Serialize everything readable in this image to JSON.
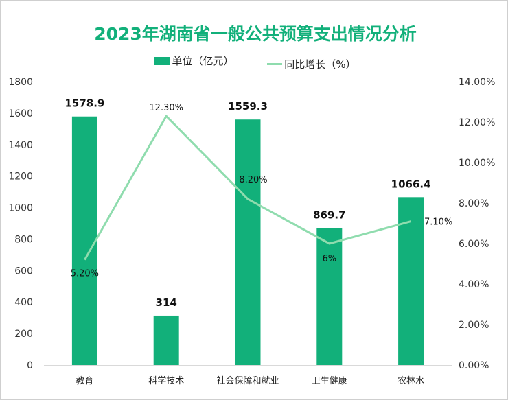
{
  "chart_data": {
    "type": "bar+line",
    "title": "2023年湖南省一般公共预算支出情况分析",
    "categories": [
      "教育",
      "科学技术",
      "社会保障和就业",
      "卫生健康",
      "农林水"
    ],
    "series": [
      {
        "name": "单位（亿元）",
        "type": "bar",
        "axis": "left",
        "values": [
          1578.9,
          314,
          1559.3,
          869.7,
          1066.4
        ],
        "labels": [
          "1578.9",
          "314",
          "1559.3",
          "869.7",
          "1066.4"
        ],
        "color": "#12b07a"
      },
      {
        "name": "同比增长（%）",
        "type": "line",
        "axis": "right",
        "values": [
          5.2,
          12.3,
          8.2,
          6,
          7.1
        ],
        "labels": [
          "5.20%",
          "12.30%",
          "8.20%",
          "6%",
          "7.10%"
        ],
        "color": "#8fdcae"
      }
    ],
    "y_left": {
      "range": [
        0,
        1800
      ],
      "ticks": [
        "0",
        "200",
        "400",
        "600",
        "800",
        "1000",
        "1200",
        "1400",
        "1600",
        "1800"
      ]
    },
    "y_right": {
      "range": [
        0,
        14
      ],
      "ticks": [
        "0.00%",
        "2.00%",
        "4.00%",
        "6.00%",
        "8.00%",
        "10.00%",
        "12.00%",
        "14.00%"
      ]
    },
    "grid": false,
    "legend": "top"
  }
}
